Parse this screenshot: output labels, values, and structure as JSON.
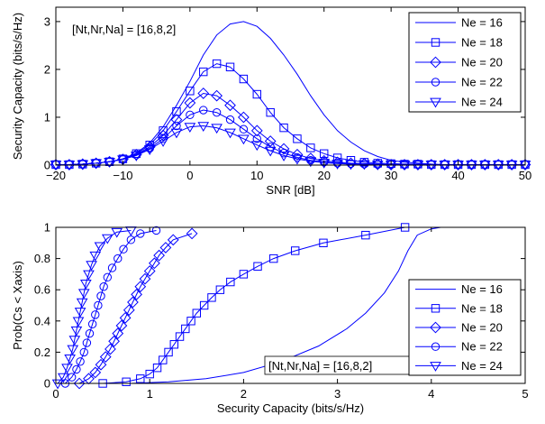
{
  "chart_data": [
    {
      "type": "line",
      "xlabel": "SNR [dB]",
      "ylabel": "Security Capacity (bits/s/Hz)",
      "xlim": [
        -20,
        50
      ],
      "ylim": [
        0,
        3.3
      ],
      "xticks": [
        -20,
        -10,
        0,
        10,
        20,
        30,
        40,
        50
      ],
      "yticks": [
        0,
        1,
        2,
        3
      ],
      "annotation": "[Nt,Nr,Na] = [16,8,2]",
      "legend_position": "top-right",
      "line_color": "#0000ff",
      "x": [
        -20,
        -18,
        -16,
        -14,
        -12,
        -10,
        -8,
        -6,
        -4,
        -2,
        0,
        2,
        4,
        6,
        8,
        10,
        12,
        14,
        16,
        18,
        20,
        22,
        24,
        26,
        28,
        30,
        32,
        34,
        36,
        38,
        40,
        42,
        44,
        46,
        48,
        50
      ],
      "series": [
        {
          "name": "Ne = 16",
          "marker": "none",
          "values": [
            0.01,
            0.01,
            0.02,
            0.04,
            0.07,
            0.13,
            0.25,
            0.46,
            0.8,
            1.25,
            1.75,
            2.3,
            2.72,
            2.95,
            3.0,
            2.9,
            2.65,
            2.3,
            1.9,
            1.45,
            1.05,
            0.72,
            0.48,
            0.3,
            0.18,
            0.1,
            0.06,
            0.04,
            0.02,
            0.01,
            0.01,
            0.01,
            0.01,
            0.01,
            0.01,
            0.01
          ]
        },
        {
          "name": "Ne = 18",
          "marker": "square",
          "values": [
            0.01,
            0.01,
            0.02,
            0.04,
            0.07,
            0.13,
            0.24,
            0.42,
            0.72,
            1.12,
            1.55,
            1.95,
            2.12,
            2.05,
            1.8,
            1.48,
            1.1,
            0.78,
            0.55,
            0.36,
            0.24,
            0.15,
            0.1,
            0.06,
            0.04,
            0.03,
            0.02,
            0.02,
            0.01,
            0.01,
            0.01,
            0.01,
            0.01,
            0.01,
            0.01,
            0.01
          ]
        },
        {
          "name": "Ne = 20",
          "marker": "diamond",
          "values": [
            0.01,
            0.01,
            0.02,
            0.04,
            0.07,
            0.12,
            0.22,
            0.38,
            0.62,
            0.95,
            1.3,
            1.5,
            1.45,
            1.25,
            1.0,
            0.72,
            0.5,
            0.34,
            0.22,
            0.14,
            0.09,
            0.06,
            0.04,
            0.03,
            0.02,
            0.01,
            0.01,
            0.01,
            0.01,
            0.01,
            0.01,
            0.01,
            0.01,
            0.01,
            0.01,
            0.01
          ]
        },
        {
          "name": "Ne = 22",
          "marker": "circle",
          "values": [
            0.01,
            0.01,
            0.02,
            0.04,
            0.07,
            0.12,
            0.21,
            0.35,
            0.55,
            0.82,
            1.05,
            1.15,
            1.1,
            0.95,
            0.75,
            0.55,
            0.38,
            0.25,
            0.16,
            0.1,
            0.06,
            0.04,
            0.03,
            0.02,
            0.01,
            0.01,
            0.01,
            0.01,
            0.01,
            0.01,
            0.01,
            0.01,
            0.01,
            0.01,
            0.01,
            0.01
          ]
        },
        {
          "name": "Ne = 24",
          "marker": "triangle-down",
          "values": [
            0.01,
            0.01,
            0.02,
            0.04,
            0.07,
            0.12,
            0.2,
            0.33,
            0.5,
            0.68,
            0.8,
            0.82,
            0.78,
            0.68,
            0.55,
            0.42,
            0.3,
            0.2,
            0.13,
            0.08,
            0.05,
            0.03,
            0.02,
            0.02,
            0.01,
            0.01,
            0.01,
            0.01,
            0.01,
            0.01,
            0.01,
            0.01,
            0.01,
            0.01,
            0.01,
            0.01
          ]
        }
      ]
    },
    {
      "type": "line",
      "xlabel": "Security Capacity (bits/s/Hz)",
      "ylabel": "Prob(Cs < Xaxis)",
      "xlim": [
        0,
        5
      ],
      "ylim": [
        0,
        1
      ],
      "xticks": [
        0,
        1,
        2,
        3,
        4,
        5
      ],
      "yticks": [
        0,
        0.2,
        0.4,
        0.6,
        0.8,
        1
      ],
      "ytick_labels": [
        "0",
        "0.2",
        "0.4",
        "0.6",
        "0.8",
        "1"
      ],
      "annotation": "[Nt,Nr,Na] = [16,8,2]",
      "legend_position": "bottom-right",
      "line_color": "#0000ff",
      "series": [
        {
          "name": "Ne = 16",
          "marker": "none",
          "points": [
            [
              0.8,
              0
            ],
            [
              1.2,
              0.01
            ],
            [
              1.6,
              0.03
            ],
            [
              2.0,
              0.07
            ],
            [
              2.4,
              0.14
            ],
            [
              2.8,
              0.24
            ],
            [
              3.1,
              0.35
            ],
            [
              3.3,
              0.45
            ],
            [
              3.5,
              0.58
            ],
            [
              3.65,
              0.72
            ],
            [
              3.75,
              0.85
            ],
            [
              3.85,
              0.95
            ],
            [
              4.0,
              0.99
            ],
            [
              4.1,
              1.0
            ]
          ]
        },
        {
          "name": "Ne = 18",
          "marker": "square",
          "points": [
            [
              0.5,
              0
            ],
            [
              0.75,
              0.01
            ],
            [
              0.9,
              0.03
            ],
            [
              1.0,
              0.06
            ],
            [
              1.08,
              0.1
            ],
            [
              1.14,
              0.15
            ],
            [
              1.2,
              0.2
            ],
            [
              1.26,
              0.25
            ],
            [
              1.32,
              0.3
            ],
            [
              1.38,
              0.35
            ],
            [
              1.44,
              0.4
            ],
            [
              1.5,
              0.45
            ],
            [
              1.58,
              0.5
            ],
            [
              1.66,
              0.55
            ],
            [
              1.75,
              0.6
            ],
            [
              1.86,
              0.65
            ],
            [
              2.0,
              0.7
            ],
            [
              2.15,
              0.75
            ],
            [
              2.32,
              0.8
            ],
            [
              2.55,
              0.85
            ],
            [
              2.85,
              0.9
            ],
            [
              3.3,
              0.95
            ],
            [
              3.72,
              1.0
            ]
          ]
        },
        {
          "name": "Ne = 20",
          "marker": "diamond",
          "points": [
            [
              0.25,
              0
            ],
            [
              0.35,
              0.03
            ],
            [
              0.42,
              0.07
            ],
            [
              0.48,
              0.12
            ],
            [
              0.53,
              0.17
            ],
            [
              0.58,
              0.22
            ],
            [
              0.62,
              0.27
            ],
            [
              0.66,
              0.32
            ],
            [
              0.7,
              0.37
            ],
            [
              0.74,
              0.42
            ],
            [
              0.78,
              0.47
            ],
            [
              0.82,
              0.52
            ],
            [
              0.86,
              0.57
            ],
            [
              0.9,
              0.62
            ],
            [
              0.95,
              0.67
            ],
            [
              1.0,
              0.72
            ],
            [
              1.05,
              0.77
            ],
            [
              1.1,
              0.82
            ],
            [
              1.17,
              0.87
            ],
            [
              1.25,
              0.92
            ],
            [
              1.45,
              0.96
            ]
          ]
        },
        {
          "name": "Ne = 22",
          "marker": "circle",
          "points": [
            [
              0.1,
              0
            ],
            [
              0.17,
              0.04
            ],
            [
              0.22,
              0.09
            ],
            [
              0.26,
              0.14
            ],
            [
              0.3,
              0.2
            ],
            [
              0.33,
              0.26
            ],
            [
              0.36,
              0.32
            ],
            [
              0.39,
              0.38
            ],
            [
              0.42,
              0.44
            ],
            [
              0.45,
              0.5
            ],
            [
              0.48,
              0.56
            ],
            [
              0.51,
              0.62
            ],
            [
              0.55,
              0.68
            ],
            [
              0.6,
              0.74
            ],
            [
              0.66,
              0.8
            ],
            [
              0.72,
              0.86
            ],
            [
              0.8,
              0.92
            ],
            [
              0.9,
              0.96
            ],
            [
              1.07,
              0.98
            ]
          ]
        },
        {
          "name": "Ne = 24",
          "marker": "triangle-down",
          "points": [
            [
              0.02,
              0
            ],
            [
              0.08,
              0.04
            ],
            [
              0.12,
              0.1
            ],
            [
              0.15,
              0.16
            ],
            [
              0.18,
              0.22
            ],
            [
              0.2,
              0.28
            ],
            [
              0.22,
              0.34
            ],
            [
              0.24,
              0.4
            ],
            [
              0.26,
              0.46
            ],
            [
              0.28,
              0.52
            ],
            [
              0.3,
              0.58
            ],
            [
              0.32,
              0.64
            ],
            [
              0.35,
              0.7
            ],
            [
              0.38,
              0.76
            ],
            [
              0.42,
              0.82
            ],
            [
              0.47,
              0.88
            ],
            [
              0.55,
              0.93
            ],
            [
              0.65,
              0.97
            ],
            [
              0.8,
              0.98
            ]
          ]
        }
      ]
    }
  ]
}
